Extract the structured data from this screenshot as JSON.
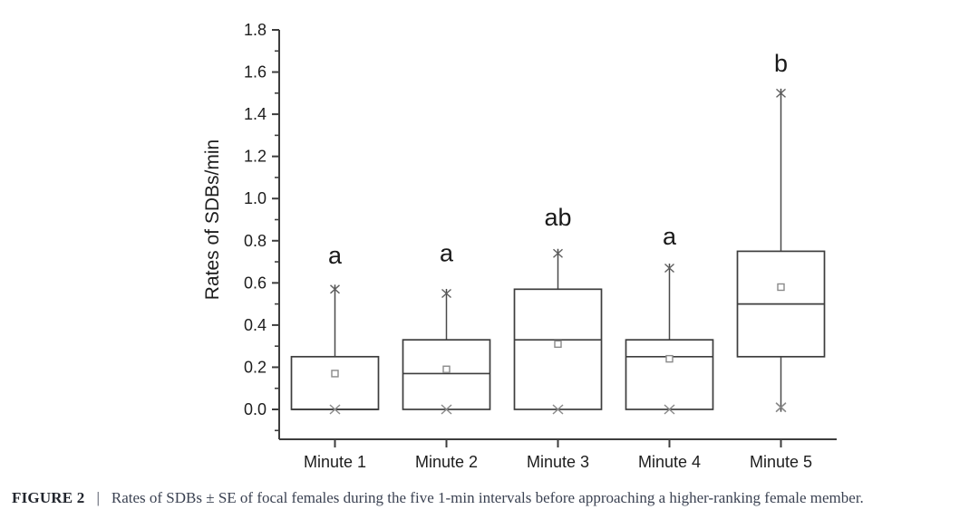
{
  "page": {
    "background": "#ffffff"
  },
  "colors": {
    "axis": "#3d3d3d",
    "box_line": "#3d3d3d",
    "median_line": "#3d3d3d",
    "whisker_line": "#4a4a4a",
    "star_marker": "#5f5f5f",
    "x_marker": "#8a8a8a",
    "mean_marker": "#8a8a8a",
    "tick_text": "#1d1d1d",
    "sig_text": "#1a1a1a",
    "caption_text": "#3b4252",
    "caption_label_text": "#22262e"
  },
  "chart_data": {
    "type": "box",
    "title": "",
    "xlabel": "",
    "ylabel": "Rates of SDBs/min",
    "ylim": [
      0.0,
      1.8
    ],
    "ytick_step": 0.2,
    "yminor_step": 0.1,
    "ytick_labels": [
      "0.0",
      "0.2",
      "0.4",
      "0.6",
      "0.8",
      "1.0",
      "1.2",
      "1.4",
      "1.6",
      "1.8"
    ],
    "grid": "off",
    "legend": "none",
    "categories": [
      "Minute 1",
      "Minute 2",
      "Minute 3",
      "Minute 4",
      "Minute 5"
    ],
    "series": [
      {
        "category": "Minute 1",
        "q1": 0.0,
        "median": 0.0,
        "q3": 0.25,
        "whisker_high": 0.57,
        "whisker_low": 0.0,
        "mean": 0.17,
        "zero_marker": 0.0,
        "sig_letter": "a",
        "sig_letter_y": 0.73
      },
      {
        "category": "Minute 2",
        "q1": 0.0,
        "median": 0.17,
        "q3": 0.33,
        "whisker_high": 0.55,
        "whisker_low": 0.0,
        "mean": 0.19,
        "zero_marker": 0.0,
        "sig_letter": "a",
        "sig_letter_y": 0.74
      },
      {
        "category": "Minute 3",
        "q1": 0.0,
        "median": 0.33,
        "q3": 0.57,
        "whisker_high": 0.74,
        "whisker_low": 0.0,
        "mean": 0.31,
        "zero_marker": 0.0,
        "sig_letter": "ab",
        "sig_letter_y": 0.91
      },
      {
        "category": "Minute 4",
        "q1": 0.0,
        "median": 0.25,
        "q3": 0.33,
        "whisker_high": 0.67,
        "whisker_low": 0.0,
        "mean": 0.24,
        "zero_marker": 0.0,
        "sig_letter": "a",
        "sig_letter_y": 0.82
      },
      {
        "category": "Minute 5",
        "q1": 0.25,
        "median": 0.5,
        "q3": 0.75,
        "whisker_high": 1.5,
        "whisker_low": 0.01,
        "mean": 0.58,
        "zero_marker": 0.01,
        "sig_letter": "b",
        "sig_letter_y": 1.64
      }
    ]
  },
  "caption": {
    "label": "FIGURE 2",
    "separator": "|",
    "text": "Rates of SDBs ± SE of focal females during the five 1-min intervals before approaching a higher-ranking female member."
  }
}
